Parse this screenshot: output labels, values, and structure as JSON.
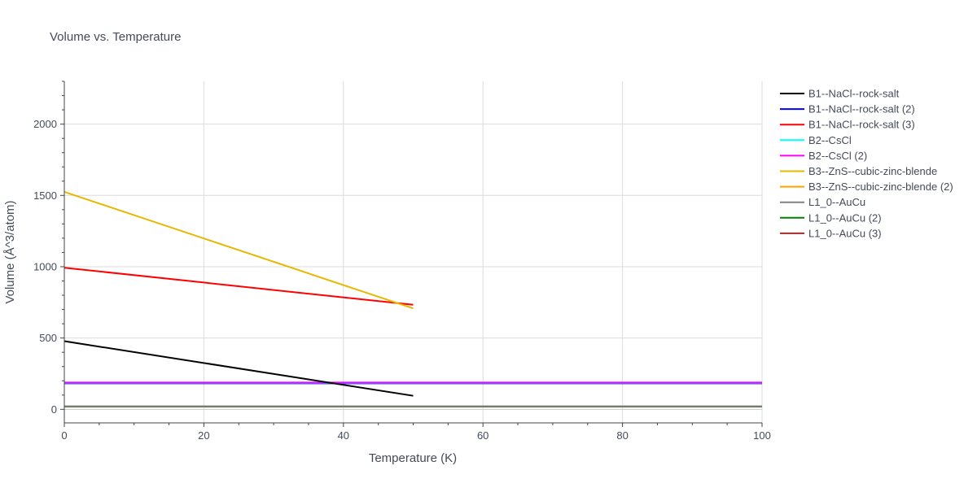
{
  "chart_data": {
    "type": "line",
    "title": "Volume vs. Temperature",
    "xlabel": "Temperature (K)",
    "ylabel": "Volume (Å^3/atom)",
    "xlim": [
      0,
      100
    ],
    "ylim": [
      -95,
      2300
    ],
    "xticks": [
      0,
      20,
      40,
      60,
      80,
      100
    ],
    "yticks": [
      0,
      500,
      1000,
      1500,
      2000
    ],
    "grid": true,
    "legend_position": "right",
    "series": [
      {
        "name": "B1--NaCl--rock-salt",
        "color": "#000000",
        "x": [
          0,
          50
        ],
        "y": [
          478,
          95
        ]
      },
      {
        "name": "B1--NaCl--rock-salt (2)",
        "color": "#0000ff",
        "x": [
          0,
          100
        ],
        "y": [
          182,
          182
        ]
      },
      {
        "name": "B1--NaCl--rock-salt (3)",
        "color": "#ff0000",
        "x": [
          0,
          50
        ],
        "y": [
          993,
          733
        ]
      },
      {
        "name": "B2--CsCl",
        "color": "#00ffff",
        "x": [
          0,
          100
        ],
        "y": [
          186,
          186
        ]
      },
      {
        "name": "B2--CsCl (2)",
        "color": "#ff00ff",
        "x": [
          0,
          100
        ],
        "y": [
          188,
          188
        ]
      },
      {
        "name": "B3--ZnS--cubic-zinc-blende",
        "color": "#e6b800",
        "x": [
          0,
          50
        ],
        "y": [
          1525,
          708
        ]
      },
      {
        "name": "B3--ZnS--cubic-zinc-blende (2)",
        "color": "#ffa500",
        "x": [
          0,
          100
        ],
        "y": [
          185,
          185
        ]
      },
      {
        "name": "L1_0--AuCu",
        "color": "#808080",
        "x": [
          0,
          100
        ],
        "y": [
          21,
          21
        ]
      },
      {
        "name": "L1_0--AuCu (2)",
        "color": "#008000",
        "x": [
          0,
          100
        ],
        "y": [
          20,
          20
        ]
      },
      {
        "name": "L1_0--AuCu (3)",
        "color": "#a52a2a",
        "x": [
          0,
          100
        ],
        "y": [
          19,
          19
        ]
      }
    ]
  }
}
